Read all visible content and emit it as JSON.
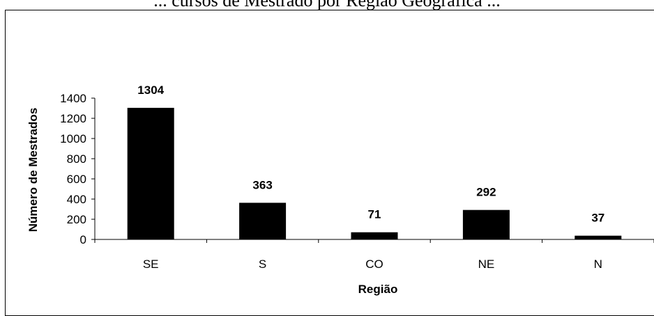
{
  "page": {
    "title": "... cursos de Mestrado por Região Geográfica ..."
  },
  "chart_data": {
    "type": "bar",
    "categories": [
      "SE",
      "S",
      "CO",
      "NE",
      "N"
    ],
    "values": [
      1304,
      363,
      71,
      292,
      37
    ],
    "data_labels": [
      "1304",
      "363",
      "71",
      "292",
      "37"
    ],
    "xlabel": "Região",
    "ylabel": "Número de Mestrados",
    "ylim": [
      0,
      1400
    ],
    "yticks": [
      0,
      200,
      400,
      600,
      800,
      1000,
      1200,
      1400
    ],
    "grid": false,
    "legend": "none",
    "bar_color": "#000000"
  }
}
